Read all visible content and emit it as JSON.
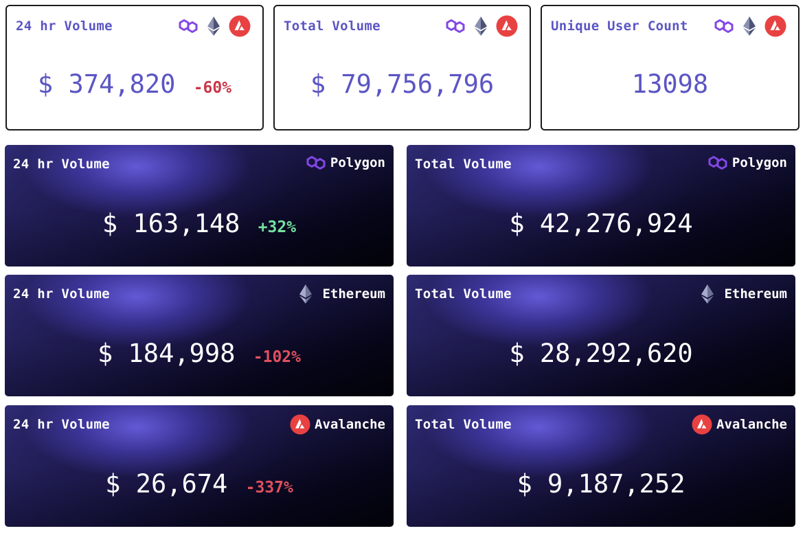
{
  "summary": [
    {
      "title": "24 hr Volume",
      "value": "$ 374,820",
      "change": "-60%",
      "icons": [
        "polygon-icon",
        "ethereum-icon",
        "avalanche-icon"
      ]
    },
    {
      "title": "Total Volume",
      "value": "$ 79,756,796",
      "change": "",
      "icons": [
        "polygon-icon",
        "ethereum-icon",
        "avalanche-icon"
      ]
    },
    {
      "title": "Unique User Count",
      "value": "13098",
      "change": "",
      "icons": [
        "polygon-icon",
        "ethereum-icon",
        "avalanche-icon"
      ]
    }
  ],
  "chains": [
    {
      "name": "Polygon",
      "icon": "polygon-icon",
      "daily": {
        "title": "24 hr Volume",
        "value": "$ 163,148",
        "change": "+32%",
        "direction": "up"
      },
      "total": {
        "title": "Total Volume",
        "value": "$ 42,276,924"
      }
    },
    {
      "name": "Ethereum",
      "icon": "ethereum-icon",
      "daily": {
        "title": "24 hr Volume",
        "value": "$ 184,998",
        "change": "-102%",
        "direction": "down"
      },
      "total": {
        "title": "Total Volume",
        "value": "$ 28,292,620"
      }
    },
    {
      "name": "Avalanche",
      "icon": "avalanche-icon",
      "daily": {
        "title": "24 hr Volume",
        "value": "$ 26,674",
        "change": "-337%",
        "direction": "down"
      },
      "total": {
        "title": "Total Volume",
        "value": "$ 9,187,252"
      }
    }
  ],
  "colors": {
    "accent": "#5b55c4",
    "negative": "#e0505f",
    "positive": "#74e3a0",
    "polygon": "#8247e5",
    "ethereum": "#62688f",
    "avalanche": "#e84142"
  }
}
